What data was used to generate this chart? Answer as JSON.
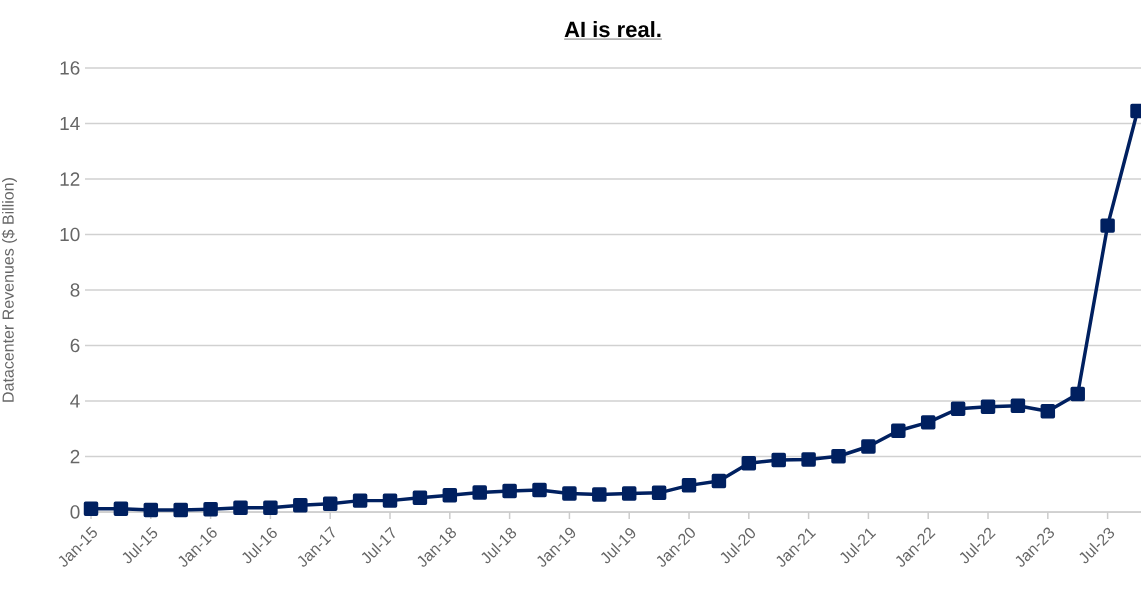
{
  "chart_data": {
    "type": "line",
    "title": "AI is real.",
    "ylabel": "Datacenter Revenues ($ Billion)",
    "categories": [
      "Jan-15",
      null,
      "Jul-15",
      null,
      "Jan-16",
      null,
      "Jul-16",
      null,
      "Jan-17",
      null,
      "Jul-17",
      null,
      "Jan-18",
      null,
      "Jul-18",
      null,
      "Jan-19",
      null,
      "Jul-19",
      null,
      "Jan-20",
      null,
      "Jul-20",
      null,
      "Jan-21",
      null,
      "Jul-21",
      null,
      "Jan-22",
      null,
      "Jul-22",
      null,
      "Jan-23",
      null,
      "Jul-23",
      null
    ],
    "series": [
      {
        "color": "#002060",
        "values": [
          0.12,
          0.12,
          0.07,
          0.07,
          0.1,
          0.15,
          0.15,
          0.24,
          0.3,
          0.41,
          0.41,
          0.51,
          0.6,
          0.7,
          0.76,
          0.79,
          0.67,
          0.63,
          0.67,
          0.69,
          0.96,
          1.12,
          1.76,
          1.87,
          1.89,
          2.01,
          2.36,
          2.93,
          3.23,
          3.72,
          3.79,
          3.83,
          3.63,
          4.25,
          10.32,
          14.45
        ]
      }
    ],
    "ylim": [
      0,
      16
    ],
    "yticks": [
      0,
      2,
      4,
      6,
      8,
      10,
      12,
      14,
      16
    ],
    "grid": "y",
    "marker": "square",
    "line_style": "solid"
  }
}
